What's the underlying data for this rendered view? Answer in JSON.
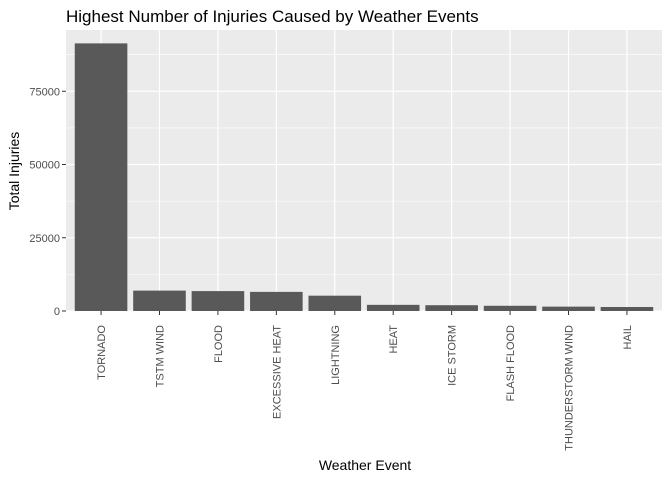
{
  "chart_data": {
    "type": "bar",
    "title": "Highest Number of Injuries Caused by Weather Events",
    "xlabel": "Weather Event",
    "ylabel": "Total Injuries",
    "categories": [
      "TORNADO",
      "TSTM WIND",
      "FLOOD",
      "EXCESSIVE HEAT",
      "LIGHTNING",
      "HEAT",
      "ICE STORM",
      "FLASH FLOOD",
      "THUNDERSTORM WIND",
      "HAIL"
    ],
    "values": [
      91346,
      6957,
      6789,
      6525,
      5230,
      2100,
      1975,
      1777,
      1488,
      1361
    ],
    "yticks": [
      0,
      25000,
      50000,
      75000
    ],
    "ylim": [
      0,
      95913
    ],
    "grid": true,
    "legend": "none",
    "bar_color": "#595959",
    "panel_color": "#ebebeb",
    "grid_color": "#ffffff"
  }
}
